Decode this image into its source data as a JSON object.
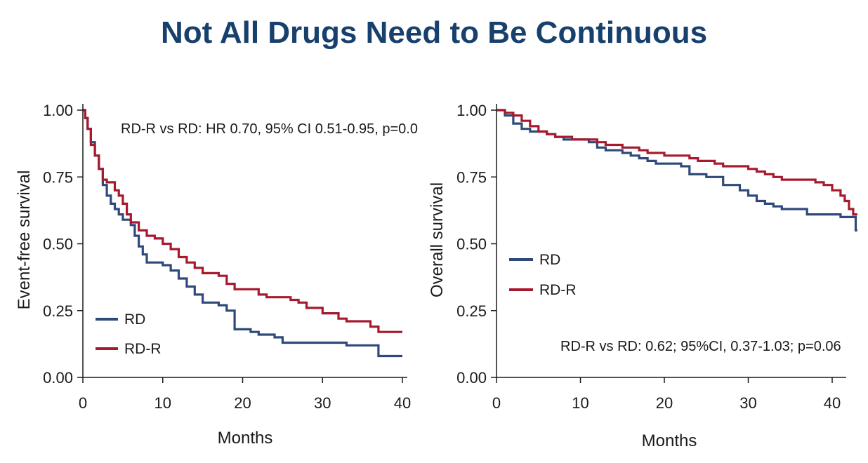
{
  "slide": {
    "title": "Not All Drugs Need to Be Continuous"
  },
  "colors": {
    "title": "#17406d",
    "rd": "#2f4a7a",
    "rdr": "#a6192e",
    "axis": "#1a1a1a"
  },
  "chart_data": [
    {
      "id": "efs",
      "type": "line",
      "step": true,
      "title": "",
      "xlabel": "Months",
      "ylabel": "Event-free survival",
      "xlim": [
        0,
        40
      ],
      "ylim": [
        0,
        1
      ],
      "xticks": [
        "0",
        "10",
        "20",
        "30",
        "40"
      ],
      "yticks": [
        "0.00",
        "0.25",
        "0.50",
        "0.75",
        "1.00"
      ],
      "annotation": "RD-R vs RD: HR 0.70, 95% CI 0.51-0.95, p=0.0",
      "legend": {
        "placement": "bottom-left",
        "entries": [
          "RD",
          "RD-R"
        ]
      },
      "series": [
        {
          "name": "RD",
          "color": "#2f4a7a",
          "points": [
            [
              0,
              1.0
            ],
            [
              0.3,
              0.97
            ],
            [
              0.6,
              0.93
            ],
            [
              1,
              0.88
            ],
            [
              1.5,
              0.83
            ],
            [
              2,
              0.78
            ],
            [
              2.5,
              0.72
            ],
            [
              3,
              0.68
            ],
            [
              3.5,
              0.65
            ],
            [
              4,
              0.63
            ],
            [
              4.5,
              0.61
            ],
            [
              5,
              0.59
            ],
            [
              6,
              0.57
            ],
            [
              6.5,
              0.53
            ],
            [
              7,
              0.49
            ],
            [
              7.5,
              0.46
            ],
            [
              8,
              0.43
            ],
            [
              10,
              0.42
            ],
            [
              11,
              0.4
            ],
            [
              12,
              0.37
            ],
            [
              13,
              0.34
            ],
            [
              14,
              0.31
            ],
            [
              15,
              0.28
            ],
            [
              17,
              0.27
            ],
            [
              18,
              0.25
            ],
            [
              19,
              0.18
            ],
            [
              21,
              0.17
            ],
            [
              22,
              0.16
            ],
            [
              24,
              0.15
            ],
            [
              25,
              0.13
            ],
            [
              33,
              0.12
            ],
            [
              37,
              0.08
            ],
            [
              40,
              0.08
            ]
          ]
        },
        {
          "name": "RD-R",
          "color": "#a6192e",
          "points": [
            [
              0,
              1.0
            ],
            [
              0.3,
              0.97
            ],
            [
              0.6,
              0.93
            ],
            [
              1,
              0.87
            ],
            [
              1.5,
              0.83
            ],
            [
              2,
              0.78
            ],
            [
              2.5,
              0.74
            ],
            [
              3,
              0.73
            ],
            [
              4,
              0.7
            ],
            [
              4.5,
              0.68
            ],
            [
              5,
              0.65
            ],
            [
              5.5,
              0.61
            ],
            [
              6,
              0.58
            ],
            [
              7,
              0.55
            ],
            [
              8,
              0.53
            ],
            [
              9,
              0.52
            ],
            [
              10,
              0.5
            ],
            [
              11,
              0.48
            ],
            [
              12,
              0.45
            ],
            [
              13,
              0.43
            ],
            [
              14,
              0.41
            ],
            [
              15,
              0.39
            ],
            [
              17,
              0.38
            ],
            [
              18,
              0.35
            ],
            [
              19,
              0.33
            ],
            [
              22,
              0.31
            ],
            [
              23,
              0.3
            ],
            [
              26,
              0.29
            ],
            [
              27,
              0.28
            ],
            [
              28,
              0.26
            ],
            [
              30,
              0.24
            ],
            [
              32,
              0.22
            ],
            [
              33,
              0.21
            ],
            [
              36,
              0.19
            ],
            [
              37,
              0.17
            ],
            [
              40,
              0.17
            ]
          ]
        }
      ]
    },
    {
      "id": "os",
      "type": "line",
      "step": true,
      "title": "",
      "xlabel": "Months",
      "ylabel": "Overall survival",
      "xlim": [
        0,
        43
      ],
      "ylim": [
        0,
        1
      ],
      "xticks": [
        "0",
        "10",
        "20",
        "30",
        "40"
      ],
      "yticks": [
        "0.00",
        "0.25",
        "0.50",
        "0.75",
        "1.00"
      ],
      "annotation": "RD-R vs RD: 0.62; 95%CI, 0.37-1.03; p=0.06",
      "legend": {
        "placement": "middle-left",
        "entries": [
          "RD",
          "RD-R"
        ]
      },
      "series": [
        {
          "name": "RD",
          "color": "#2f4a7a",
          "points": [
            [
              0,
              1.0
            ],
            [
              1,
              0.98
            ],
            [
              2,
              0.95
            ],
            [
              3,
              0.93
            ],
            [
              4,
              0.92
            ],
            [
              6,
              0.91
            ],
            [
              7,
              0.9
            ],
            [
              8,
              0.89
            ],
            [
              11,
              0.88
            ],
            [
              12,
              0.86
            ],
            [
              13,
              0.85
            ],
            [
              15,
              0.84
            ],
            [
              16,
              0.83
            ],
            [
              17,
              0.82
            ],
            [
              18,
              0.81
            ],
            [
              19,
              0.8
            ],
            [
              22,
              0.79
            ],
            [
              23,
              0.76
            ],
            [
              25,
              0.75
            ],
            [
              27,
              0.72
            ],
            [
              29,
              0.7
            ],
            [
              30,
              0.68
            ],
            [
              31,
              0.66
            ],
            [
              32,
              0.65
            ],
            [
              33,
              0.64
            ],
            [
              34,
              0.63
            ],
            [
              37,
              0.61
            ],
            [
              41,
              0.6
            ],
            [
              42.5,
              0.6
            ],
            [
              42.8,
              0.55
            ],
            [
              43,
              0.55
            ]
          ]
        },
        {
          "name": "RD-R",
          "color": "#a6192e",
          "points": [
            [
              0,
              1.0
            ],
            [
              1,
              0.99
            ],
            [
              2,
              0.98
            ],
            [
              3,
              0.96
            ],
            [
              4,
              0.94
            ],
            [
              5,
              0.92
            ],
            [
              6,
              0.91
            ],
            [
              7,
              0.9
            ],
            [
              9,
              0.89
            ],
            [
              11,
              0.89
            ],
            [
              12,
              0.88
            ],
            [
              13,
              0.87
            ],
            [
              15,
              0.86
            ],
            [
              17,
              0.85
            ],
            [
              18,
              0.84
            ],
            [
              20,
              0.83
            ],
            [
              23,
              0.82
            ],
            [
              24,
              0.81
            ],
            [
              26,
              0.8
            ],
            [
              27,
              0.79
            ],
            [
              30,
              0.78
            ],
            [
              31,
              0.77
            ],
            [
              32,
              0.76
            ],
            [
              33,
              0.75
            ],
            [
              34,
              0.74
            ],
            [
              38,
              0.73
            ],
            [
              39,
              0.72
            ],
            [
              40,
              0.7
            ],
            [
              41,
              0.68
            ],
            [
              41.5,
              0.66
            ],
            [
              42,
              0.63
            ],
            [
              42.5,
              0.61
            ],
            [
              43,
              0.61
            ]
          ]
        }
      ]
    }
  ]
}
